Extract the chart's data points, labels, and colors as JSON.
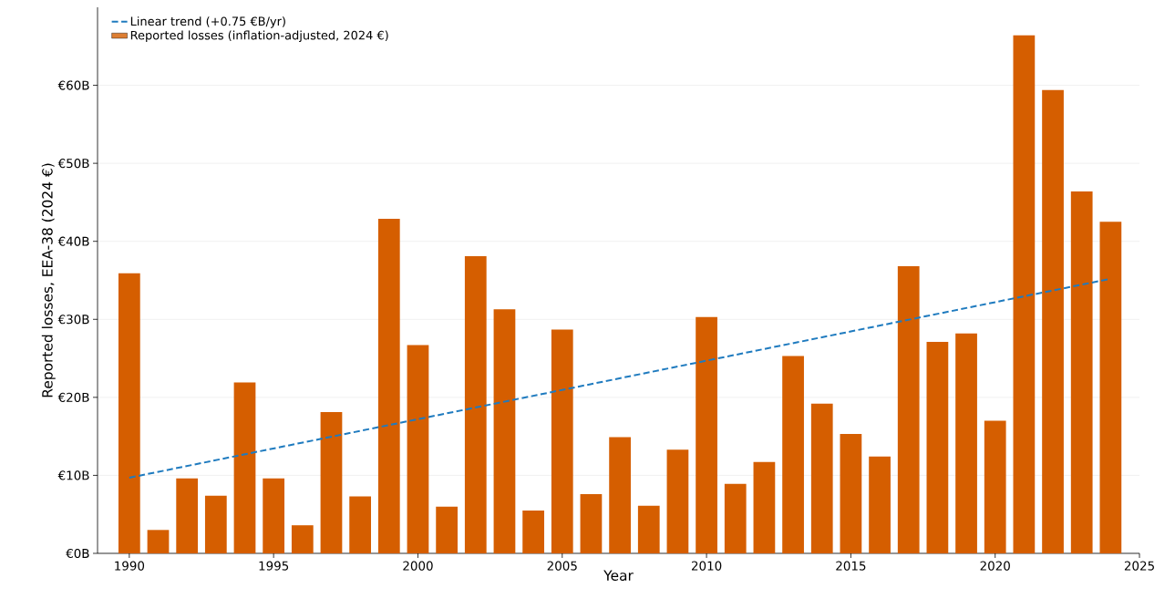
{
  "chart_data": {
    "type": "bar",
    "xlabel": "Year",
    "ylabel": "Reported losses, EEA-38 (2024 €)",
    "x": [
      1990,
      1991,
      1992,
      1993,
      1994,
      1995,
      1996,
      1997,
      1998,
      1999,
      2000,
      2001,
      2002,
      2003,
      2004,
      2005,
      2006,
      2007,
      2008,
      2009,
      2010,
      2011,
      2012,
      2013,
      2014,
      2015,
      2016,
      2017,
      2018,
      2019,
      2020,
      2021,
      2022,
      2023,
      2024
    ],
    "series": [
      {
        "name": "Reported losses (inflation-adjusted, 2024 €)",
        "color": "#d55e00",
        "values": [
          35.9,
          3.0,
          9.6,
          7.4,
          21.9,
          9.6,
          3.6,
          18.1,
          7.3,
          42.9,
          26.7,
          6.0,
          38.1,
          31.3,
          5.5,
          28.7,
          7.6,
          14.9,
          6.1,
          13.3,
          30.3,
          8.9,
          11.7,
          25.3,
          19.2,
          15.3,
          12.4,
          36.8,
          27.1,
          28.2,
          17.0,
          66.4,
          59.4,
          46.4,
          42.5
        ]
      },
      {
        "name": "Linear trend (+0.75 €B/yr)",
        "type": "line",
        "color": "#1f7bbf",
        "line_style": "dashed",
        "x": [
          1990,
          2024
        ],
        "values": [
          9.7,
          35.2
        ]
      }
    ],
    "xlim": [
      1988.9,
      2025
    ],
    "xticks": [
      1990,
      1995,
      2000,
      2005,
      2010,
      2015,
      2020,
      2025
    ],
    "ylim": [
      0,
      70
    ],
    "yticks": [
      {
        "value": 0,
        "label": "€0B"
      },
      {
        "value": 10,
        "label": "€10B"
      },
      {
        "value": 20,
        "label": "€20B"
      },
      {
        "value": 30,
        "label": "€30B"
      },
      {
        "value": 40,
        "label": "€40B"
      },
      {
        "value": 50,
        "label": "€50B"
      },
      {
        "value": 60,
        "label": "€60B"
      }
    ],
    "grid": "y",
    "legend": "top left"
  }
}
